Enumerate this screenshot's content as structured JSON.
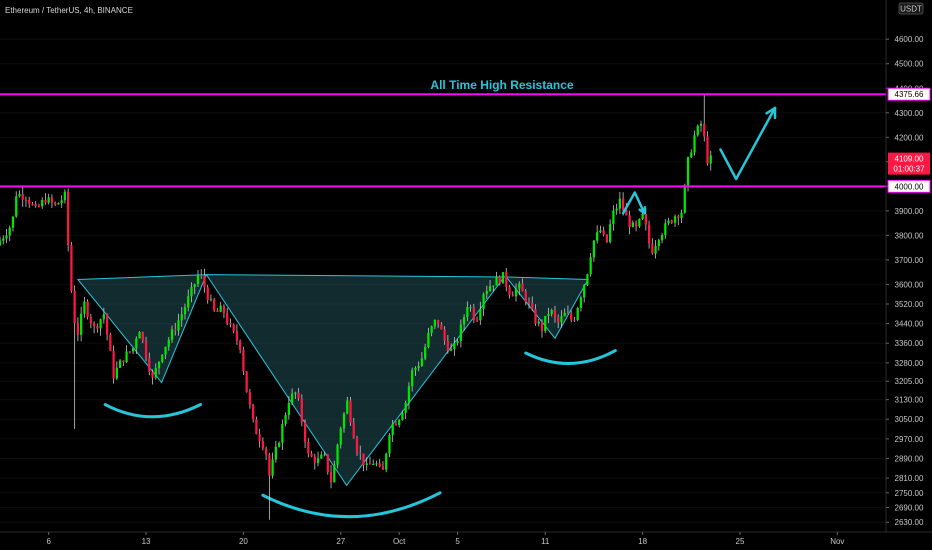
{
  "header": {
    "symbol": "Ethereum / TetherUS, 4h, BINANCE"
  },
  "price_scale": {
    "currency": "USDT"
  },
  "chart_data": {
    "type": "candlestick",
    "title": "Ethereum / TetherUS, 4h, BINANCE",
    "ylim": [
      2590,
      4760
    ],
    "xlim": [
      0,
      45.5
    ],
    "y_ticks": [
      4600,
      4500,
      4400,
      4300,
      4200,
      4100,
      4000,
      3900,
      3800,
      3700,
      3600,
      3520,
      3440,
      3360,
      3280,
      3205,
      3130,
      3050,
      2970,
      2890,
      2810,
      2750,
      2690,
      2630
    ],
    "x_ticks": [
      {
        "label": "6",
        "day": 2.5
      },
      {
        "label": "13",
        "day": 7.5
      },
      {
        "label": "20",
        "day": 12.5
      },
      {
        "label": "27",
        "day": 17.5
      },
      {
        "label": "Oct",
        "day": 20.5
      },
      {
        "label": "5",
        "day": 23.5
      },
      {
        "label": "11",
        "day": 28.0
      },
      {
        "label": "18",
        "day": 33.0
      },
      {
        "label": "25",
        "day": 38.0
      },
      {
        "label": "Nov",
        "day": 43.0
      }
    ],
    "horizontal_levels": [
      {
        "price": 4375.66,
        "label": "4375.66",
        "color": "#ff00ff"
      },
      {
        "price": 4000.0,
        "label": "4000.00",
        "color": "#ff00ff"
      }
    ],
    "current_price": {
      "price": 4109.0,
      "label": "4109.00",
      "countdown": "01:00:37",
      "color": "#ff1744"
    },
    "annotations": [
      {
        "text": "All Time High Resistance",
        "color": "#26c6da"
      }
    ],
    "price_path": [
      [
        0.0,
        3760
      ],
      [
        0.8,
        3850
      ],
      [
        1.0,
        3970
      ],
      [
        1.5,
        3960
      ],
      [
        2.0,
        3900
      ],
      [
        2.5,
        3950
      ],
      [
        3.0,
        3920
      ],
      [
        3.5,
        3960
      ],
      [
        3.8,
        3600
      ],
      [
        4.1,
        3380
      ],
      [
        4.5,
        3520
      ],
      [
        5.0,
        3420
      ],
      [
        5.5,
        3480
      ],
      [
        6.0,
        3230
      ],
      [
        6.5,
        3300
      ],
      [
        7.0,
        3340
      ],
      [
        7.3,
        3430
      ],
      [
        8.0,
        3210
      ],
      [
        8.5,
        3330
      ],
      [
        9.0,
        3400
      ],
      [
        9.5,
        3480
      ],
      [
        10.0,
        3570
      ],
      [
        10.4,
        3650
      ],
      [
        10.8,
        3560
      ],
      [
        11.2,
        3480
      ],
      [
        11.6,
        3500
      ],
      [
        12.0,
        3420
      ],
      [
        12.5,
        3350
      ],
      [
        12.8,
        3180
      ],
      [
        13.2,
        3020
      ],
      [
        13.8,
        2930
      ],
      [
        14.0,
        2820
      ],
      [
        14.6,
        3000
      ],
      [
        15.0,
        3130
      ],
      [
        15.4,
        3160
      ],
      [
        16.0,
        2900
      ],
      [
        16.5,
        2880
      ],
      [
        16.8,
        2900
      ],
      [
        17.2,
        2790
      ],
      [
        17.6,
        3000
      ],
      [
        18.0,
        3120
      ],
      [
        18.5,
        2930
      ],
      [
        19.0,
        2850
      ],
      [
        19.4,
        2880
      ],
      [
        19.8,
        2820
      ],
      [
        20.2,
        3020
      ],
      [
        20.6,
        3050
      ],
      [
        21.0,
        3120
      ],
      [
        21.3,
        3240
      ],
      [
        21.8,
        3290
      ],
      [
        22.2,
        3400
      ],
      [
        22.6,
        3460
      ],
      [
        23.0,
        3370
      ],
      [
        23.4,
        3320
      ],
      [
        23.8,
        3410
      ],
      [
        24.2,
        3530
      ],
      [
        24.6,
        3450
      ],
      [
        25.0,
        3570
      ],
      [
        25.5,
        3610
      ],
      [
        26.0,
        3630
      ],
      [
        26.4,
        3560
      ],
      [
        26.8,
        3590
      ],
      [
        27.2,
        3540
      ],
      [
        27.6,
        3460
      ],
      [
        28.0,
        3420
      ],
      [
        28.4,
        3500
      ],
      [
        28.8,
        3440
      ],
      [
        29.2,
        3480
      ],
      [
        29.6,
        3450
      ],
      [
        30.0,
        3560
      ],
      [
        30.3,
        3640
      ],
      [
        30.6,
        3770
      ],
      [
        31.0,
        3820
      ],
      [
        31.3,
        3760
      ],
      [
        31.6,
        3880
      ],
      [
        32.0,
        3940
      ],
      [
        32.4,
        3860
      ],
      [
        32.8,
        3820
      ],
      [
        33.2,
        3880
      ],
      [
        33.6,
        3730
      ],
      [
        34.0,
        3800
      ],
      [
        34.4,
        3840
      ],
      [
        34.8,
        3880
      ],
      [
        35.2,
        3900
      ],
      [
        35.5,
        4100
      ],
      [
        35.8,
        4200
      ],
      [
        36.2,
        4260
      ],
      [
        36.5,
        4109
      ]
    ],
    "shapes": {
      "neckline_triangles": [
        [
          [
            4.0,
            3620
          ],
          [
            10.6,
            3640
          ],
          [
            8.3,
            3200
          ]
        ],
        [
          [
            10.6,
            3640
          ],
          [
            25.9,
            3630
          ],
          [
            17.8,
            2780
          ]
        ],
        [
          [
            26.0,
            3630
          ],
          [
            30.2,
            3620
          ],
          [
            28.5,
            3380
          ]
        ]
      ],
      "arcs": [
        {
          "from": [
            5.4,
            3110
          ],
          "to": [
            10.3,
            3110
          ],
          "control": [
            7.8,
            3010
          ]
        },
        {
          "from": [
            13.5,
            2740
          ],
          "to": [
            22.6,
            2750
          ],
          "control": [
            18.0,
            2560
          ]
        },
        {
          "from": [
            27.0,
            3320
          ],
          "to": [
            31.6,
            3330
          ],
          "control": [
            29.3,
            3230
          ]
        }
      ],
      "arrows": [
        [
          [
            32.0,
            3890
          ],
          [
            32.6,
            3975
          ],
          [
            33.1,
            3890
          ]
        ],
        [
          [
            37.0,
            4150
          ],
          [
            37.8,
            4030
          ],
          [
            39.8,
            4320
          ]
        ]
      ]
    }
  }
}
